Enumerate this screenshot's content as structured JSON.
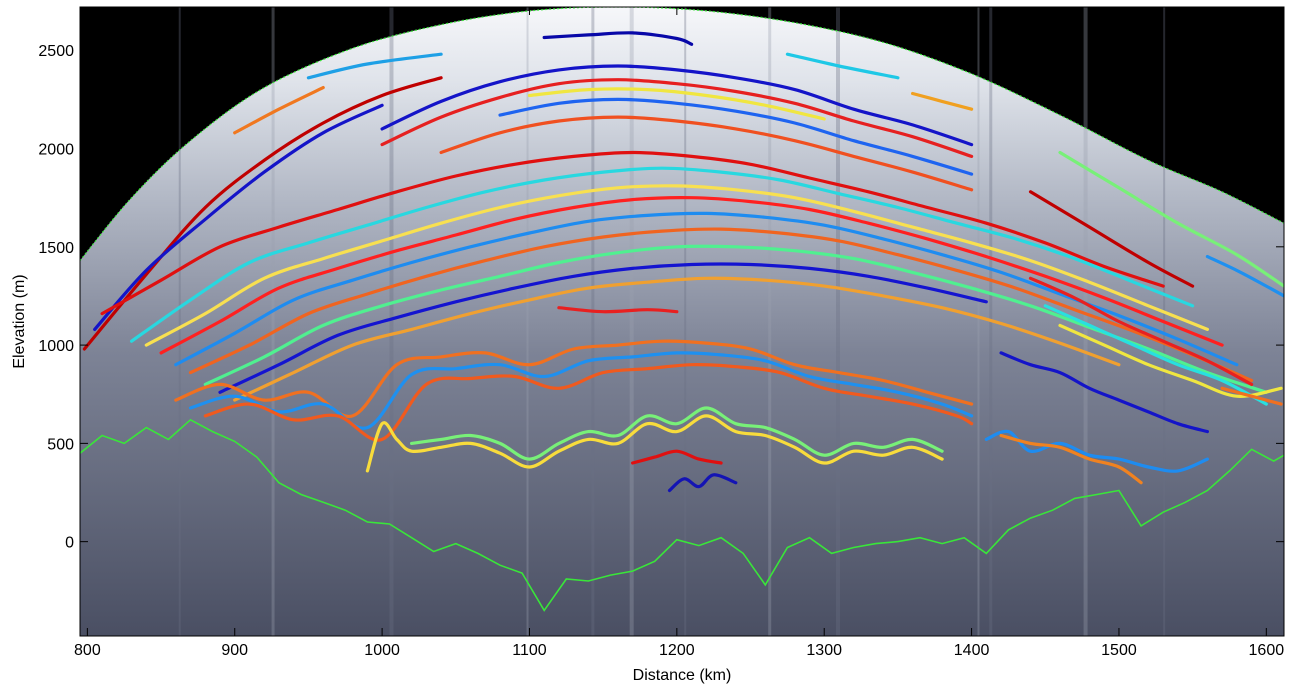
{
  "chart_data": {
    "type": "line",
    "title": "",
    "xlabel": "Distance (km)",
    "ylabel": "Elevation (m)",
    "xlim": [
      795,
      1612
    ],
    "ylim": [
      -480,
      2720
    ],
    "xticks": [
      800,
      900,
      1000,
      1100,
      1200,
      1300,
      1400,
      1500,
      1600
    ],
    "yticks": [
      0,
      500,
      1000,
      1500,
      2000,
      2500
    ],
    "grid": false,
    "legend": "none",
    "background": "radargram",
    "colors": {
      "sky": "#000000",
      "bed_trace": "#39e639",
      "deep_ice": "#4a4f63",
      "shallow_ice": "#c8ccd6",
      "surface_firn": "#f2f4f7"
    },
    "surface": {
      "x": [
        795,
        830,
        870,
        920,
        980,
        1040,
        1100,
        1160,
        1220,
        1280,
        1340,
        1400,
        1460,
        1520,
        1570,
        1612
      ],
      "y": [
        1430,
        1750,
        2040,
        2310,
        2510,
        2630,
        2700,
        2720,
        2700,
        2640,
        2540,
        2380,
        2170,
        1940,
        1780,
        1620
      ]
    },
    "bed": {
      "x": [
        795,
        810,
        825,
        840,
        855,
        870,
        885,
        900,
        915,
        930,
        945,
        960,
        975,
        990,
        1005,
        1020,
        1035,
        1050,
        1065,
        1080,
        1095,
        1110,
        1125,
        1140,
        1155,
        1170,
        1185,
        1200,
        1215,
        1230,
        1245,
        1260,
        1275,
        1290,
        1305,
        1320,
        1335,
        1350,
        1365,
        1380,
        1395,
        1410,
        1425,
        1440,
        1455,
        1470,
        1485,
        1500,
        1515,
        1530,
        1545,
        1560,
        1575,
        1590,
        1605,
        1612
      ],
      "y": [
        450,
        540,
        500,
        580,
        520,
        620,
        560,
        510,
        430,
        300,
        240,
        200,
        160,
        100,
        90,
        20,
        -50,
        -10,
        -60,
        -120,
        -160,
        -350,
        -190,
        -200,
        -170,
        -150,
        -100,
        10,
        -20,
        20,
        -60,
        -220,
        -30,
        20,
        -60,
        -30,
        -10,
        0,
        20,
        -10,
        20,
        -60,
        60,
        120,
        160,
        220,
        240,
        260,
        80,
        150,
        200,
        260,
        360,
        470,
        410,
        440
      ]
    },
    "layers": [
      {
        "color": "#c00000",
        "x": [
          798,
          840,
          880,
          920,
          960,
          1000,
          1040
        ],
        "y": [
          980,
          1360,
          1700,
          1940,
          2130,
          2270,
          2360
        ]
      },
      {
        "color": "#1414c8",
        "x": [
          805,
          840,
          880,
          920,
          960,
          1000
        ],
        "y": [
          1080,
          1380,
          1640,
          1880,
          2080,
          2220
        ]
      },
      {
        "color": "#f07820",
        "x": [
          900,
          930,
          960
        ],
        "y": [
          2080,
          2200,
          2310
        ]
      },
      {
        "color": "#1ea0e6",
        "x": [
          950,
          990,
          1040
        ],
        "y": [
          2360,
          2430,
          2480
        ]
      },
      {
        "color": "#0808a8",
        "x": [
          1110,
          1140,
          1170,
          1200,
          1210
        ],
        "y": [
          2565,
          2578,
          2588,
          2560,
          2530
        ]
      },
      {
        "color": "#1ec8e6",
        "x": [
          1275,
          1310,
          1350
        ],
        "y": [
          2480,
          2420,
          2360
        ]
      },
      {
        "color": "#f0a020",
        "x": [
          1360,
          1380,
          1400
        ],
        "y": [
          2280,
          2240,
          2200
        ]
      },
      {
        "color": "#1414c8",
        "x": [
          1000,
          1040,
          1080,
          1120,
          1160,
          1200,
          1240,
          1280,
          1320,
          1360,
          1400
        ],
        "y": [
          2100,
          2240,
          2340,
          2400,
          2420,
          2400,
          2360,
          2300,
          2200,
          2120,
          2020
        ]
      },
      {
        "color": "#e62020",
        "x": [
          1000,
          1040,
          1080,
          1120,
          1160,
          1200,
          1240,
          1280,
          1320,
          1360,
          1400
        ],
        "y": [
          2020,
          2160,
          2260,
          2330,
          2350,
          2330,
          2290,
          2230,
          2140,
          2060,
          1960
        ]
      },
      {
        "color": "#f0e640",
        "x": [
          1100,
          1140,
          1180,
          1220,
          1260,
          1300
        ],
        "y": [
          2270,
          2300,
          2300,
          2270,
          2220,
          2150
        ]
      },
      {
        "color": "#1e64f0",
        "x": [
          1080,
          1120,
          1160,
          1200,
          1240,
          1280,
          1320,
          1360,
          1400
        ],
        "y": [
          2170,
          2230,
          2250,
          2230,
          2190,
          2130,
          2040,
          1960,
          1870
        ]
      },
      {
        "color": "#f05020",
        "x": [
          1040,
          1080,
          1120,
          1160,
          1200,
          1240,
          1280,
          1320,
          1360,
          1400
        ],
        "y": [
          1980,
          2080,
          2140,
          2160,
          2140,
          2100,
          2040,
          1960,
          1880,
          1790
        ]
      },
      {
        "color": "#e01010",
        "x": [
          810,
          850,
          890,
          930,
          970,
          1010,
          1050,
          1090,
          1130,
          1170,
          1210,
          1250,
          1290,
          1330,
          1370,
          1410,
          1450,
          1490,
          1530
        ],
        "y": [
          1160,
          1330,
          1500,
          1600,
          1690,
          1780,
          1860,
          1920,
          1960,
          1980,
          1960,
          1920,
          1850,
          1780,
          1700,
          1620,
          1520,
          1400,
          1300
        ]
      },
      {
        "color": "#28d8e0",
        "x": [
          830,
          870,
          910,
          950,
          990,
          1030,
          1070,
          1110,
          1150,
          1190,
          1230,
          1270,
          1310,
          1350,
          1390,
          1430,
          1470,
          1510,
          1550
        ],
        "y": [
          1020,
          1230,
          1420,
          1520,
          1610,
          1700,
          1780,
          1840,
          1880,
          1900,
          1880,
          1840,
          1770,
          1700,
          1620,
          1540,
          1440,
          1320,
          1200
        ]
      },
      {
        "color": "#f8e050",
        "x": [
          840,
          880,
          920,
          960,
          1000,
          1040,
          1080,
          1120,
          1160,
          1200,
          1240,
          1280,
          1320,
          1360,
          1400,
          1440,
          1480,
          1520,
          1560
        ],
        "y": [
          1000,
          1160,
          1340,
          1440,
          1530,
          1620,
          1700,
          1760,
          1800,
          1810,
          1790,
          1750,
          1680,
          1600,
          1520,
          1430,
          1320,
          1200,
          1080
        ]
      },
      {
        "color": "#ff2020",
        "x": [
          850,
          890,
          930,
          970,
          1010,
          1050,
          1090,
          1130,
          1170,
          1210,
          1250,
          1290,
          1330,
          1370,
          1410,
          1450,
          1490,
          1530,
          1570
        ],
        "y": [
          960,
          1120,
          1290,
          1390,
          1480,
          1560,
          1640,
          1700,
          1740,
          1750,
          1730,
          1690,
          1620,
          1540,
          1450,
          1350,
          1240,
          1120,
          1000
        ]
      },
      {
        "color": "#1e8cf0",
        "x": [
          860,
          900,
          940,
          980,
          1020,
          1060,
          1100,
          1140,
          1180,
          1220,
          1260,
          1300,
          1340,
          1380,
          1420,
          1460,
          1500,
          1540,
          1580
        ],
        "y": [
          900,
          1060,
          1230,
          1330,
          1420,
          1500,
          1570,
          1630,
          1660,
          1670,
          1650,
          1610,
          1540,
          1460,
          1370,
          1260,
          1150,
          1030,
          900
        ]
      },
      {
        "color": "#f06420",
        "x": [
          870,
          910,
          950,
          990,
          1030,
          1070,
          1110,
          1150,
          1190,
          1230,
          1270,
          1310,
          1350,
          1390,
          1430,
          1470,
          1510,
          1550,
          1590
        ],
        "y": [
          860,
          1000,
          1160,
          1260,
          1350,
          1430,
          1500,
          1550,
          1580,
          1590,
          1570,
          1530,
          1460,
          1380,
          1290,
          1180,
          1070,
          950,
          820
        ]
      },
      {
        "color": "#50f090",
        "x": [
          880,
          920,
          960,
          1000,
          1040,
          1080,
          1120,
          1160,
          1200,
          1240,
          1280,
          1320,
          1360,
          1400,
          1440,
          1480,
          1520,
          1560,
          1600
        ],
        "y": [
          800,
          940,
          1100,
          1200,
          1280,
          1350,
          1420,
          1470,
          1500,
          1500,
          1480,
          1440,
          1370,
          1290,
          1200,
          1090,
          980,
          860,
          760
        ]
      },
      {
        "color": "#1414d0",
        "x": [
          890,
          930,
          970,
          1010,
          1050,
          1090,
          1130,
          1170,
          1210,
          1250,
          1290,
          1330,
          1370,
          1410
        ],
        "y": [
          760,
          900,
          1050,
          1140,
          1220,
          1290,
          1350,
          1390,
          1410,
          1410,
          1390,
          1350,
          1290,
          1220
        ]
      },
      {
        "color": "#f0a030",
        "x": [
          900,
          940,
          980,
          1020,
          1060,
          1100,
          1140,
          1180,
          1220,
          1260,
          1300,
          1340,
          1380,
          1420,
          1460,
          1500
        ],
        "y": [
          720,
          860,
          1000,
          1080,
          1160,
          1230,
          1290,
          1320,
          1340,
          1330,
          1300,
          1250,
          1190,
          1110,
          1010,
          900
        ]
      },
      {
        "color": "#e82020",
        "x": [
          1120,
          1150,
          1180,
          1200
        ],
        "y": [
          1190,
          1170,
          1180,
          1170
        ]
      },
      {
        "color": "#f07020",
        "x": [
          860,
          890,
          920,
          950,
          980,
          1010,
          1040,
          1070,
          1100,
          1130,
          1160,
          1190,
          1220,
          1250,
          1280,
          1310,
          1340,
          1370,
          1400
        ],
        "y": [
          720,
          800,
          720,
          760,
          640,
          900,
          940,
          960,
          900,
          980,
          1000,
          1020,
          1010,
          980,
          900,
          860,
          820,
          760,
          700
        ]
      },
      {
        "color": "#1e90f0",
        "x": [
          870,
          900,
          930,
          960,
          990,
          1020,
          1050,
          1080,
          1110,
          1140,
          1170,
          1200,
          1230,
          1260,
          1290,
          1320,
          1350,
          1380,
          1400
        ],
        "y": [
          680,
          740,
          660,
          700,
          580,
          850,
          880,
          900,
          840,
          920,
          940,
          960,
          950,
          920,
          840,
          800,
          760,
          700,
          640
        ]
      },
      {
        "color": "#f05a1e",
        "x": [
          880,
          910,
          940,
          970,
          1000,
          1030,
          1060,
          1090,
          1120,
          1150,
          1180,
          1210,
          1240,
          1270,
          1300,
          1330,
          1360,
          1390,
          1400
        ],
        "y": [
          640,
          700,
          620,
          640,
          520,
          800,
          830,
          840,
          780,
          860,
          880,
          900,
          890,
          860,
          780,
          740,
          700,
          640,
          600
        ]
      },
      {
        "color": "#f8dc3c",
        "x": [
          990,
          1000,
          1010,
          1020,
          1040,
          1060,
          1080,
          1100,
          1120,
          1140,
          1160,
          1180,
          1200,
          1220,
          1240,
          1260,
          1280,
          1300,
          1320,
          1340,
          1360,
          1380
        ],
        "y": [
          360,
          600,
          520,
          460,
          480,
          500,
          450,
          380,
          460,
          520,
          500,
          600,
          560,
          640,
          560,
          540,
          480,
          400,
          460,
          440,
          480,
          420
        ]
      },
      {
        "color": "#78f078",
        "x": [
          1020,
          1040,
          1060,
          1080,
          1100,
          1120,
          1140,
          1160,
          1180,
          1200,
          1220,
          1240,
          1260,
          1280,
          1300,
          1320,
          1340,
          1360,
          1380
        ],
        "y": [
          500,
          520,
          540,
          500,
          420,
          500,
          560,
          540,
          640,
          600,
          680,
          600,
          580,
          520,
          440,
          500,
          480,
          520,
          460
        ]
      },
      {
        "color": "#e01010",
        "x": [
          1170,
          1185,
          1200,
          1215,
          1230
        ],
        "y": [
          400,
          430,
          460,
          420,
          400
        ]
      },
      {
        "color": "#1414b4",
        "x": [
          1195,
          1205,
          1215,
          1225,
          1240
        ],
        "y": [
          260,
          320,
          280,
          340,
          300
        ]
      },
      {
        "color": "#1e8cf0",
        "x": [
          1410,
          1425,
          1440,
          1460,
          1480,
          1500,
          1520,
          1540,
          1560
        ],
        "y": [
          520,
          560,
          460,
          500,
          440,
          420,
          380,
          360,
          420
        ]
      },
      {
        "color": "#f08220",
        "x": [
          1420,
          1440,
          1460,
          1480,
          1500,
          1515
        ],
        "y": [
          540,
          500,
          480,
          420,
          380,
          300
        ]
      },
      {
        "color": "#1414c8",
        "x": [
          1420,
          1440,
          1460,
          1480,
          1500,
          1520,
          1540,
          1560
        ],
        "y": [
          960,
          900,
          860,
          780,
          720,
          660,
          600,
          560
        ]
      },
      {
        "color": "#e82020",
        "x": [
          1440,
          1470,
          1500,
          1530,
          1560,
          1590
        ],
        "y": [
          1340,
          1240,
          1120,
          1020,
          920,
          800
        ]
      },
      {
        "color": "#28e0e0",
        "x": [
          1450,
          1480,
          1510,
          1540,
          1570,
          1600
        ],
        "y": [
          1200,
          1100,
          1000,
          900,
          820,
          700
        ]
      },
      {
        "color": "#f0e640",
        "x": [
          1460,
          1490,
          1520,
          1550,
          1580,
          1610
        ],
        "y": [
          1100,
          1000,
          900,
          820,
          740,
          780
        ]
      },
      {
        "color": "#78f078",
        "x": [
          1460,
          1500,
          1540,
          1580,
          1612
        ],
        "y": [
          1980,
          1800,
          1620,
          1460,
          1300
        ]
      },
      {
        "color": "#c00000",
        "x": [
          1440,
          1480,
          1520,
          1550
        ],
        "y": [
          1780,
          1600,
          1420,
          1300
        ]
      },
      {
        "color": "#1e90f0",
        "x": [
          1560,
          1580,
          1600,
          1612
        ],
        "y": [
          1450,
          1380,
          1300,
          1250
        ]
      },
      {
        "color": "#f07020",
        "x": [
          1570,
          1590,
          1610
        ],
        "y": [
          780,
          740,
          700
        ]
      }
    ]
  }
}
